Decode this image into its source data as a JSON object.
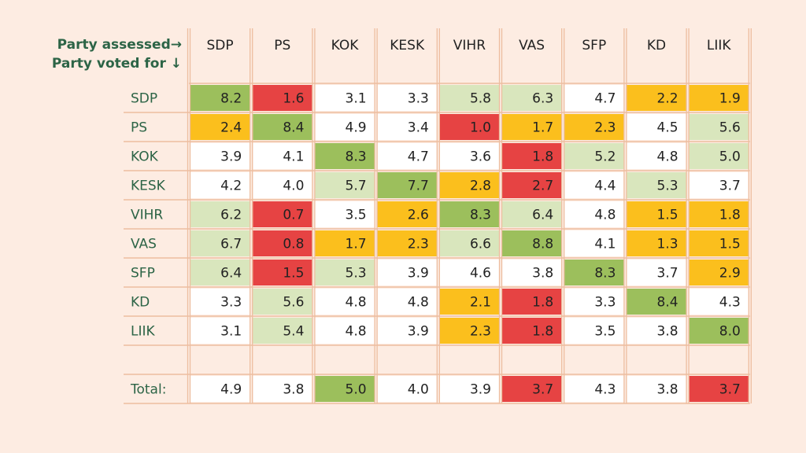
{
  "chart_data": {
    "type": "heatmap",
    "corner_label_top": "Party assessed→",
    "corner_label_left": "Party voted for ↓",
    "columns": [
      "SDP",
      "PS",
      "KOK",
      "KESK",
      "VIHR",
      "VAS",
      "SFP",
      "KD",
      "LIIK"
    ],
    "rows": [
      "SDP",
      "PS",
      "KOK",
      "KESK",
      "VIHR",
      "VAS",
      "SFP",
      "KD",
      "LIIK"
    ],
    "values": [
      [
        8.2,
        1.6,
        3.1,
        3.3,
        5.8,
        6.3,
        4.7,
        2.2,
        1.9
      ],
      [
        2.4,
        8.4,
        4.9,
        3.4,
        1.0,
        1.7,
        2.3,
        4.5,
        5.6
      ],
      [
        3.9,
        4.1,
        8.3,
        4.7,
        3.6,
        1.8,
        5.2,
        4.8,
        5.0
      ],
      [
        4.2,
        4.0,
        5.7,
        7.7,
        2.8,
        2.7,
        4.4,
        5.3,
        3.7
      ],
      [
        6.2,
        0.7,
        3.5,
        2.6,
        8.3,
        6.4,
        4.8,
        1.5,
        1.8
      ],
      [
        6.7,
        0.8,
        1.7,
        2.3,
        6.6,
        8.8,
        4.1,
        1.3,
        1.5
      ],
      [
        6.4,
        1.5,
        5.3,
        3.9,
        4.6,
        3.8,
        8.3,
        3.7,
        2.9
      ],
      [
        3.3,
        5.6,
        4.8,
        4.8,
        2.1,
        1.8,
        3.3,
        8.4,
        4.3
      ],
      [
        3.1,
        5.4,
        4.8,
        3.9,
        2.3,
        1.8,
        3.5,
        3.8,
        8.0
      ]
    ],
    "cell_colors": [
      [
        "dg",
        "r",
        "n",
        "n",
        "lg",
        "lg",
        "n",
        "o",
        "o"
      ],
      [
        "o",
        "dg",
        "n",
        "n",
        "r",
        "o",
        "o",
        "n",
        "lg"
      ],
      [
        "n",
        "n",
        "dg",
        "n",
        "n",
        "r",
        "lg",
        "n",
        "lg"
      ],
      [
        "n",
        "n",
        "lg",
        "dg",
        "o",
        "r",
        "n",
        "lg",
        "n"
      ],
      [
        "lg",
        "r",
        "n",
        "o",
        "dg",
        "lg",
        "n",
        "o",
        "o"
      ],
      [
        "lg",
        "r",
        "o",
        "o",
        "lg",
        "dg",
        "n",
        "o",
        "o"
      ],
      [
        "lg",
        "r",
        "lg",
        "n",
        "n",
        "n",
        "dg",
        "n",
        "o"
      ],
      [
        "n",
        "lg",
        "n",
        "n",
        "o",
        "r",
        "n",
        "dg",
        "n"
      ],
      [
        "n",
        "lg",
        "n",
        "n",
        "o",
        "r",
        "n",
        "n",
        "dg"
      ]
    ],
    "total_label": "Total:",
    "totals": [
      4.9,
      3.8,
      5.0,
      4.0,
      3.9,
      3.7,
      4.3,
      3.8,
      3.7
    ],
    "total_colors": [
      "n",
      "n",
      "dg",
      "n",
      "n",
      "r",
      "n",
      "n",
      "r"
    ],
    "palette": {
      "dg": "#9cbf5c",
      "lg": "#d9e6bd",
      "o": "#fbbf1d",
      "r": "#e64343",
      "n": "#ffffff"
    },
    "grid_color": "#edbd9f",
    "row_label_color": "#2c6446",
    "header_color": "#2c6446"
  }
}
